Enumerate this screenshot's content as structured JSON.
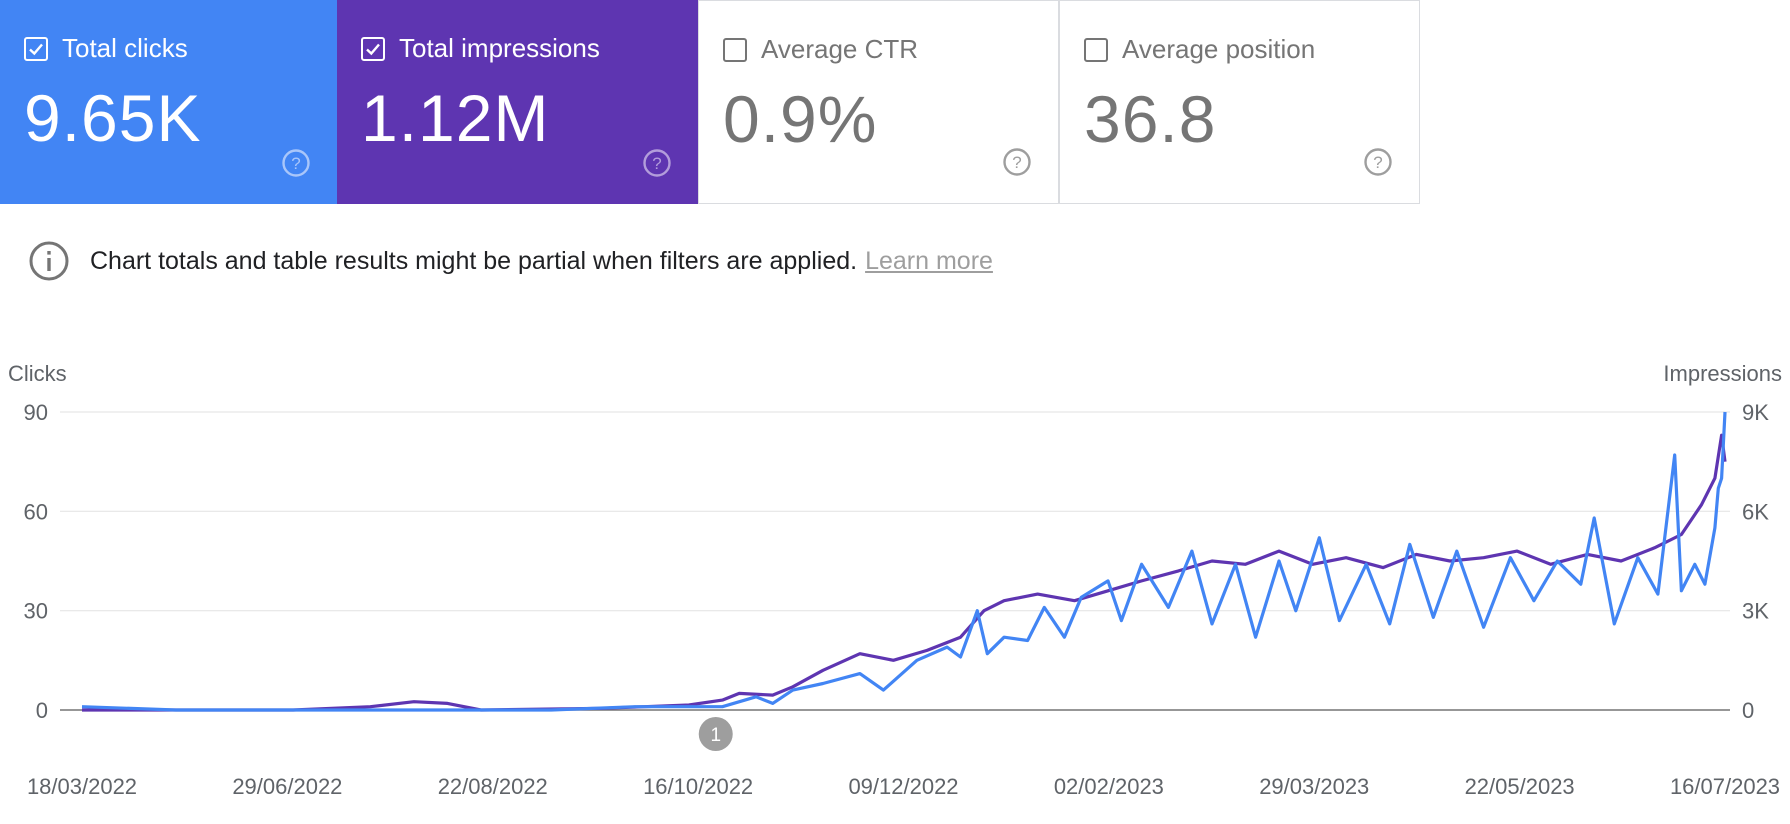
{
  "cards": [
    {
      "label": "Total clicks",
      "value": "9.65K",
      "checked": true,
      "color": "#4285f4"
    },
    {
      "label": "Total impressions",
      "value": "1.12M",
      "checked": true,
      "color": "#5e35b1"
    },
    {
      "label": "Average CTR",
      "value": "0.9%",
      "checked": false,
      "color": "#757575"
    },
    {
      "label": "Average position",
      "value": "36.8",
      "checked": false,
      "color": "#757575"
    }
  ],
  "notice": {
    "text": "Chart totals and table results might be partial when filters are applied.",
    "link": "Learn more"
  },
  "chart_data": {
    "type": "line",
    "left_axis": {
      "title": "Clicks",
      "ticks": [
        "90",
        "60",
        "30",
        "0"
      ],
      "tick_values": [
        90,
        60,
        30,
        0
      ],
      "ylim": [
        0,
        90
      ]
    },
    "right_axis": {
      "title": "Impressions",
      "ticks": [
        "9K",
        "6K",
        "3K",
        "0"
      ],
      "tick_values": [
        9000,
        6000,
        3000,
        0
      ],
      "ylim": [
        0,
        9000
      ]
    },
    "x_ticks": [
      "18/03/2022",
      "29/06/2022",
      "22/08/2022",
      "16/10/2022",
      "09/12/2022",
      "02/02/2023",
      "29/03/2023",
      "22/05/2023",
      "16/07/2023"
    ],
    "x_range": [
      "2022-03-18",
      "2023-07-21"
    ],
    "grid": true,
    "annotation": {
      "label": "1",
      "date": "2022-09-23"
    },
    "series": [
      {
        "name": "Total clicks",
        "axis": "left",
        "color": "#4285f4",
        "points": [
          [
            "2022-03-18",
            1
          ],
          [
            "2022-04-15",
            0
          ],
          [
            "2022-05-20",
            0
          ],
          [
            "2022-06-15",
            0
          ],
          [
            "2022-07-10",
            0
          ],
          [
            "2022-08-05",
            0
          ],
          [
            "2022-08-30",
            1
          ],
          [
            "2022-09-25",
            1
          ],
          [
            "2022-10-05",
            4
          ],
          [
            "2022-10-10",
            2
          ],
          [
            "2022-10-16",
            6
          ],
          [
            "2022-10-25",
            8
          ],
          [
            "2022-11-05",
            11
          ],
          [
            "2022-11-12",
            6
          ],
          [
            "2022-11-22",
            15
          ],
          [
            "2022-12-01",
            19
          ],
          [
            "2022-12-05",
            16
          ],
          [
            "2022-12-10",
            30
          ],
          [
            "2022-12-13",
            17
          ],
          [
            "2022-12-18",
            22
          ],
          [
            "2022-12-25",
            21
          ],
          [
            "2022-12-30",
            31
          ],
          [
            "2023-01-05",
            22
          ],
          [
            "2023-01-10",
            34
          ],
          [
            "2023-01-18",
            39
          ],
          [
            "2023-01-22",
            27
          ],
          [
            "2023-01-28",
            44
          ],
          [
            "2023-02-05",
            31
          ],
          [
            "2023-02-12",
            48
          ],
          [
            "2023-02-18",
            26
          ],
          [
            "2023-02-25",
            44
          ],
          [
            "2023-03-03",
            22
          ],
          [
            "2023-03-10",
            45
          ],
          [
            "2023-03-15",
            30
          ],
          [
            "2023-03-22",
            52
          ],
          [
            "2023-03-28",
            27
          ],
          [
            "2023-04-05",
            44
          ],
          [
            "2023-04-12",
            26
          ],
          [
            "2023-04-18",
            50
          ],
          [
            "2023-04-25",
            28
          ],
          [
            "2023-05-02",
            48
          ],
          [
            "2023-05-10",
            25
          ],
          [
            "2023-05-18",
            46
          ],
          [
            "2023-05-25",
            33
          ],
          [
            "2023-06-01",
            45
          ],
          [
            "2023-06-08",
            38
          ],
          [
            "2023-06-12",
            58
          ],
          [
            "2023-06-18",
            26
          ],
          [
            "2023-06-25",
            46
          ],
          [
            "2023-07-01",
            35
          ],
          [
            "2023-07-06",
            77
          ],
          [
            "2023-07-08",
            36
          ],
          [
            "2023-07-12",
            44
          ],
          [
            "2023-07-15",
            38
          ],
          [
            "2023-07-18",
            55
          ],
          [
            "2023-07-19",
            67
          ],
          [
            "2023-07-20",
            70
          ],
          [
            "2023-07-21",
            90
          ]
        ]
      },
      {
        "name": "Total impressions",
        "axis": "right",
        "color": "#5e35b1",
        "points": [
          [
            "2022-03-18",
            0
          ],
          [
            "2022-05-20",
            0
          ],
          [
            "2022-06-12",
            100
          ],
          [
            "2022-06-25",
            250
          ],
          [
            "2022-07-05",
            200
          ],
          [
            "2022-07-15",
            0
          ],
          [
            "2022-08-20",
            50
          ],
          [
            "2022-09-15",
            150
          ],
          [
            "2022-09-25",
            300
          ],
          [
            "2022-09-30",
            500
          ],
          [
            "2022-10-10",
            450
          ],
          [
            "2022-10-16",
            700
          ],
          [
            "2022-10-25",
            1200
          ],
          [
            "2022-11-05",
            1700
          ],
          [
            "2022-11-15",
            1500
          ],
          [
            "2022-11-25",
            1800
          ],
          [
            "2022-12-05",
            2200
          ],
          [
            "2022-12-12",
            3000
          ],
          [
            "2022-12-18",
            3300
          ],
          [
            "2022-12-28",
            3500
          ],
          [
            "2023-01-08",
            3300
          ],
          [
            "2023-01-18",
            3600
          ],
          [
            "2023-01-28",
            3900
          ],
          [
            "2023-02-08",
            4200
          ],
          [
            "2023-02-18",
            4500
          ],
          [
            "2023-02-28",
            4400
          ],
          [
            "2023-03-10",
            4800
          ],
          [
            "2023-03-20",
            4400
          ],
          [
            "2023-03-30",
            4600
          ],
          [
            "2023-04-10",
            4300
          ],
          [
            "2023-04-20",
            4700
          ],
          [
            "2023-04-30",
            4500
          ],
          [
            "2023-05-10",
            4600
          ],
          [
            "2023-05-20",
            4800
          ],
          [
            "2023-05-30",
            4400
          ],
          [
            "2023-06-10",
            4700
          ],
          [
            "2023-06-20",
            4500
          ],
          [
            "2023-06-30",
            4900
          ],
          [
            "2023-07-08",
            5300
          ],
          [
            "2023-07-14",
            6200
          ],
          [
            "2023-07-18",
            7000
          ],
          [
            "2023-07-20",
            8300
          ],
          [
            "2023-07-21",
            7500
          ]
        ]
      }
    ]
  }
}
